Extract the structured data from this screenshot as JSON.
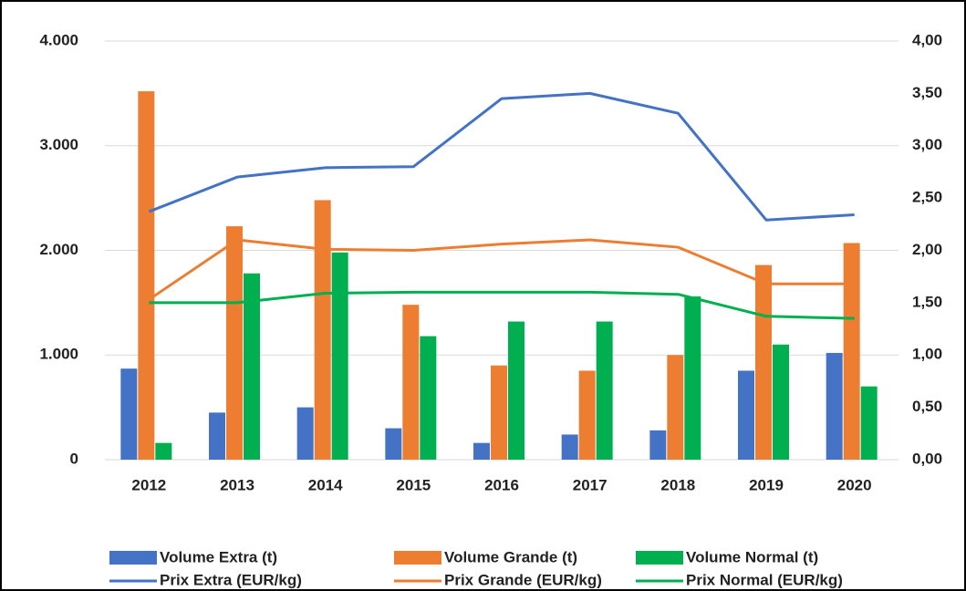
{
  "chart_data": {
    "type": "bar",
    "categories": [
      "2012",
      "2013",
      "2014",
      "2015",
      "2016",
      "2017",
      "2018",
      "2019",
      "2020"
    ],
    "series": [
      {
        "name": "Volume Extra (t)",
        "type": "bar",
        "color": "#4472c4",
        "values": [
          870,
          450,
          500,
          300,
          160,
          240,
          280,
          850,
          1020
        ]
      },
      {
        "name": "Volume Grande (t)",
        "type": "bar",
        "color": "#ed7d31",
        "values": [
          3520,
          2230,
          2480,
          1480,
          900,
          850,
          1000,
          1860,
          2070
        ]
      },
      {
        "name": "Volume Normal (t)",
        "type": "bar",
        "color": "#00b050",
        "values": [
          160,
          1780,
          1980,
          1180,
          1320,
          1320,
          1560,
          1100,
          700
        ]
      },
      {
        "name": "Prix Extra (EUR/kg)",
        "type": "line",
        "axis": "y2",
        "color": "#4472c4",
        "values": [
          2.37,
          2.7,
          2.79,
          2.8,
          3.45,
          3.5,
          3.31,
          2.29,
          2.34
        ]
      },
      {
        "name": "Prix Grande (EUR/kg)",
        "type": "line",
        "axis": "y2",
        "color": "#ed7d31",
        "values": [
          1.53,
          2.1,
          2.01,
          2.0,
          2.06,
          2.1,
          2.03,
          1.68,
          1.68
        ]
      },
      {
        "name": "Prix Normal (EUR/kg)",
        "type": "line",
        "axis": "y2",
        "color": "#00b050",
        "values": [
          1.5,
          1.5,
          1.59,
          1.6,
          1.6,
          1.6,
          1.58,
          1.37,
          1.35
        ]
      }
    ],
    "ylim": [
      0,
      4000
    ],
    "yticks": [
      {
        "value": 0,
        "label": "0"
      },
      {
        "value": 1000,
        "label": "1.000"
      },
      {
        "value": 2000,
        "label": "2.000"
      },
      {
        "value": 3000,
        "label": "3.000"
      },
      {
        "value": 4000,
        "label": "4.000"
      }
    ],
    "y2lim": [
      0,
      4
    ],
    "y2ticks": [
      {
        "value": 0,
        "label": "0,00"
      },
      {
        "value": 0.5,
        "label": "0,50"
      },
      {
        "value": 1,
        "label": "1,00"
      },
      {
        "value": 1.5,
        "label": "1,50"
      },
      {
        "value": 2,
        "label": "2,00"
      },
      {
        "value": 2.5,
        "label": "2,50"
      },
      {
        "value": 3,
        "label": "3,00"
      },
      {
        "value": 3.5,
        "label": "3,50"
      },
      {
        "value": 4,
        "label": "4,00"
      }
    ],
    "grid": true,
    "legend": "bottom"
  }
}
